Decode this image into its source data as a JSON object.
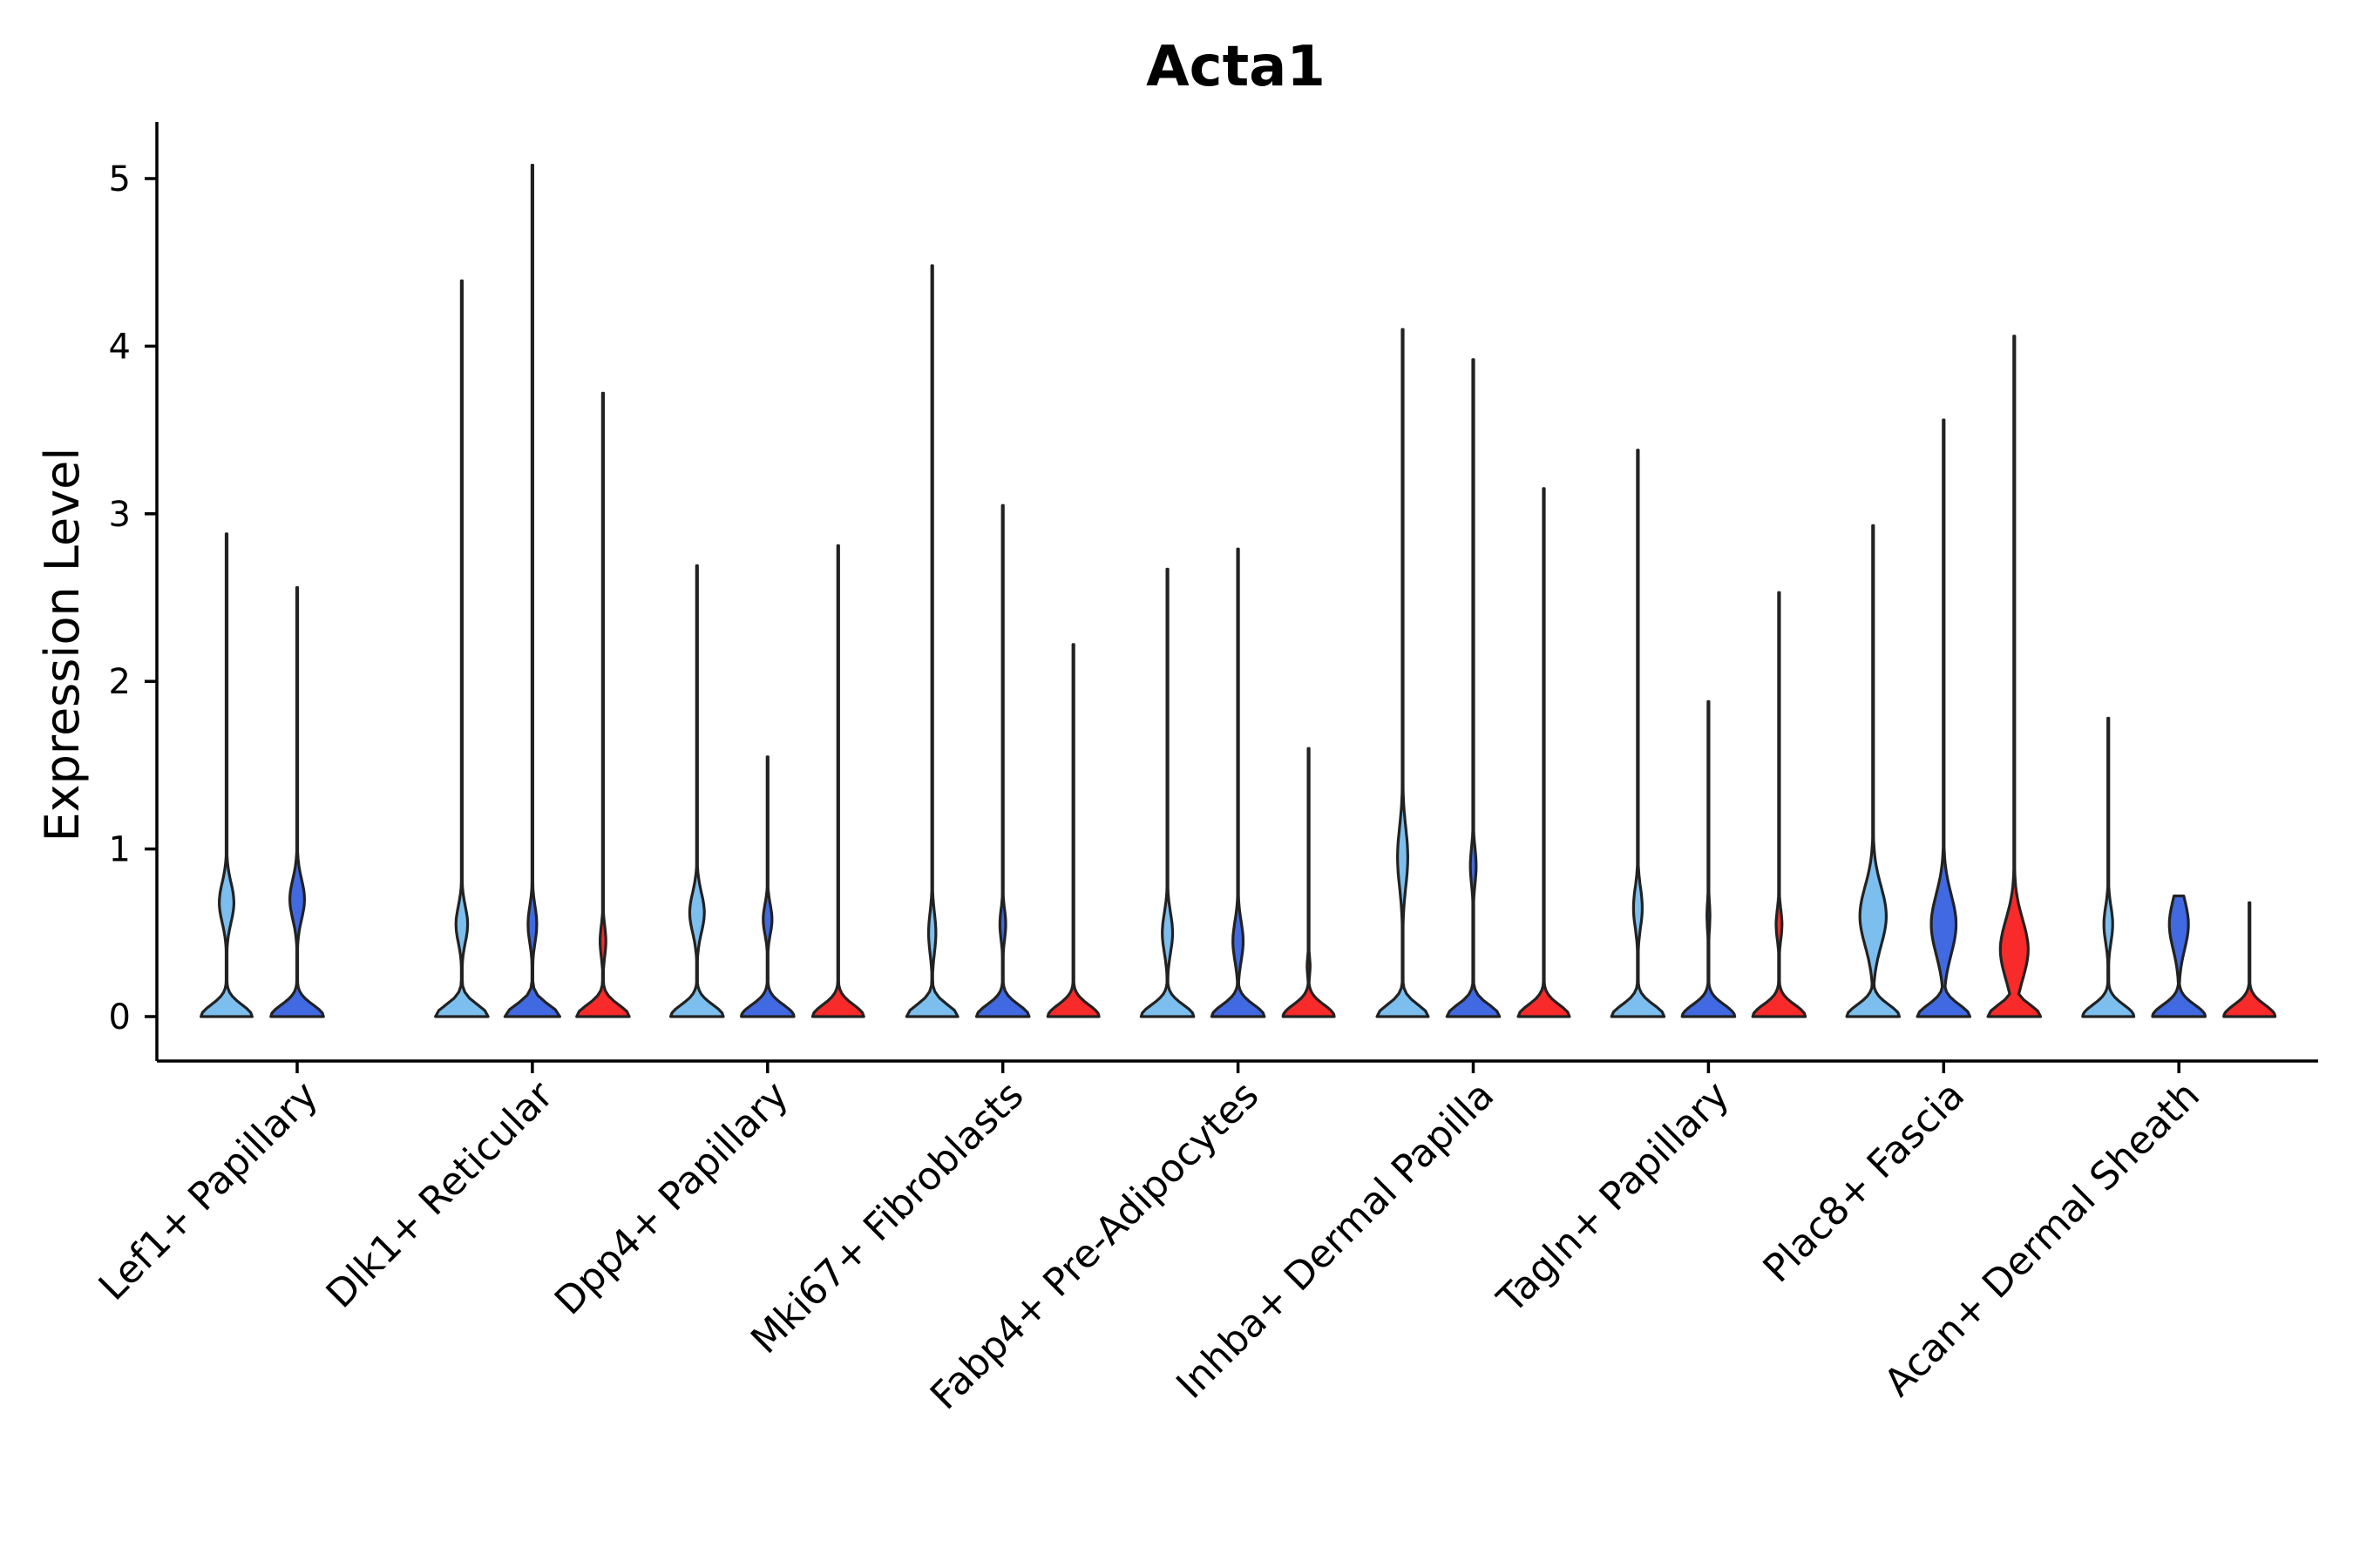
{
  "chart_data": {
    "type": "violin",
    "title": "Acta1",
    "ylabel": "Expression Level",
    "xlabel": "",
    "ylim": [
      -0.25,
      5.35
    ],
    "yticks": [
      0,
      1,
      2,
      3,
      4,
      5
    ],
    "grid": false,
    "legend": "none",
    "categories": [
      "Lef1+ Papillary",
      "Dlk1+ Reticular",
      "Dpp4+ Papillary",
      "Mki67+ Fibroblasts",
      "Fabp4+ Pre-Adipocytes",
      "Inhba+ Dermal Papilla",
      "Tagln+ Papillary",
      "Plac8+ Fascia",
      "Acan+ Dermal Sheath"
    ],
    "groups": [
      {
        "name": "group1",
        "color": "#7cbfee"
      },
      {
        "name": "group2",
        "color": "#4169e1"
      },
      {
        "name": "group3",
        "color": "#f92a2a"
      }
    ],
    "violins": [
      {
        "category": 0,
        "group": 0,
        "max": 2.88,
        "base_width": 0.7,
        "mode_y": 0.68,
        "mode_width": 0.2,
        "spread": 0.2
      },
      {
        "category": 0,
        "group": 1,
        "max": 2.56,
        "base_width": 0.72,
        "mode_y": 0.7,
        "mode_width": 0.2,
        "spread": 0.2
      },
      {
        "category": 1,
        "group": 0,
        "max": 4.39,
        "base_width": 0.72,
        "mode_y": 0.55,
        "mode_width": 0.16,
        "spread": 0.18
      },
      {
        "category": 1,
        "group": 1,
        "max": 5.08,
        "base_width": 0.75,
        "mode_y": 0.55,
        "mode_width": 0.12,
        "spread": 0.18
      },
      {
        "category": 1,
        "group": 2,
        "max": 3.72,
        "base_width": 0.72,
        "mode_y": 0.45,
        "mode_width": 0.08,
        "spread": 0.15
      },
      {
        "category": 2,
        "group": 0,
        "max": 2.69,
        "base_width": 0.72,
        "mode_y": 0.62,
        "mode_width": 0.2,
        "spread": 0.2
      },
      {
        "category": 2,
        "group": 1,
        "max": 1.55,
        "base_width": 0.72,
        "mode_y": 0.58,
        "mode_width": 0.12,
        "spread": 0.15
      },
      {
        "category": 2,
        "group": 2,
        "max": 2.81,
        "base_width": 0.7,
        "mode_y": 0.0,
        "mode_width": 0.0,
        "spread": 0.1
      },
      {
        "category": 3,
        "group": 0,
        "max": 4.48,
        "base_width": 0.7,
        "mode_y": 0.5,
        "mode_width": 0.1,
        "spread": 0.2
      },
      {
        "category": 3,
        "group": 1,
        "max": 3.05,
        "base_width": 0.72,
        "mode_y": 0.55,
        "mode_width": 0.08,
        "spread": 0.15
      },
      {
        "category": 3,
        "group": 2,
        "max": 2.22,
        "base_width": 0.7,
        "mode_y": 0.0,
        "mode_width": 0.0,
        "spread": 0.1
      },
      {
        "category": 4,
        "group": 0,
        "max": 2.67,
        "base_width": 0.72,
        "mode_y": 0.5,
        "mode_width": 0.14,
        "spread": 0.2
      },
      {
        "category": 4,
        "group": 1,
        "max": 2.79,
        "base_width": 0.72,
        "mode_y": 0.45,
        "mode_width": 0.14,
        "spread": 0.2
      },
      {
        "category": 4,
        "group": 2,
        "max": 1.6,
        "base_width": 0.7,
        "mode_y": 0.3,
        "mode_width": 0.04,
        "spread": 0.1
      },
      {
        "category": 5,
        "group": 0,
        "max": 4.1,
        "base_width": 0.7,
        "mode_y": 0.95,
        "mode_width": 0.14,
        "spread": 0.3
      },
      {
        "category": 5,
        "group": 1,
        "max": 3.92,
        "base_width": 0.72,
        "mode_y": 0.9,
        "mode_width": 0.08,
        "spread": 0.18
      },
      {
        "category": 5,
        "group": 2,
        "max": 3.15,
        "base_width": 0.7,
        "mode_y": 0.0,
        "mode_width": 0.0,
        "spread": 0.1
      },
      {
        "category": 6,
        "group": 0,
        "max": 3.38,
        "base_width": 0.72,
        "mode_y": 0.65,
        "mode_width": 0.12,
        "spread": 0.2
      },
      {
        "category": 6,
        "group": 1,
        "max": 1.88,
        "base_width": 0.72,
        "mode_y": 0.6,
        "mode_width": 0.04,
        "spread": 0.15
      },
      {
        "category": 6,
        "group": 2,
        "max": 2.53,
        "base_width": 0.72,
        "mode_y": 0.55,
        "mode_width": 0.08,
        "spread": 0.15
      },
      {
        "category": 7,
        "group": 0,
        "max": 2.93,
        "base_width": 0.72,
        "mode_y": 0.6,
        "mode_width": 0.36,
        "spread": 0.3
      },
      {
        "category": 7,
        "group": 1,
        "max": 3.56,
        "base_width": 0.72,
        "mode_y": 0.55,
        "mode_width": 0.34,
        "spread": 0.3
      },
      {
        "category": 7,
        "group": 2,
        "max": 4.06,
        "base_width": 0.72,
        "mode_y": 0.4,
        "mode_width": 0.38,
        "spread": 0.3
      },
      {
        "category": 8,
        "group": 0,
        "max": 1.78,
        "base_width": 0.7,
        "mode_y": 0.55,
        "mode_width": 0.12,
        "spread": 0.18
      },
      {
        "category": 8,
        "group": 1,
        "max": 0.72,
        "base_width": 0.72,
        "mode_y": 0.55,
        "mode_width": 0.26,
        "spread": 0.25
      },
      {
        "category": 8,
        "group": 2,
        "max": 0.68,
        "base_width": 0.7,
        "mode_y": 0.0,
        "mode_width": 0.0,
        "spread": 0.1
      }
    ]
  }
}
